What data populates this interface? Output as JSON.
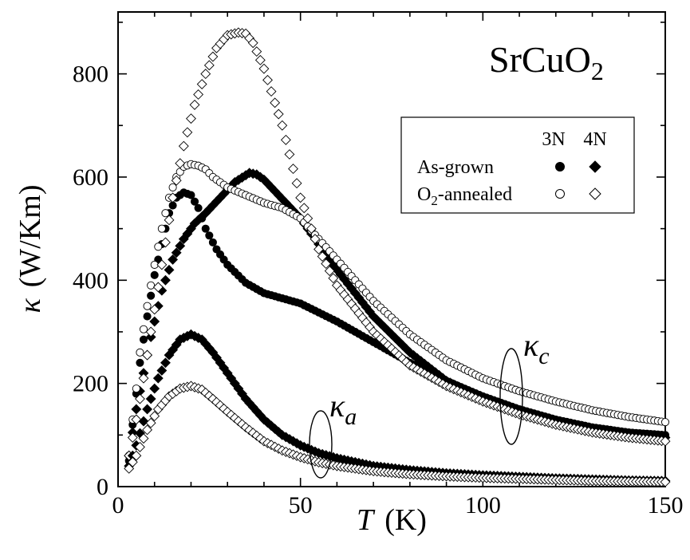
{
  "chart_data": {
    "type": "scatter",
    "title": "SrCuO",
    "title_subscript": "2",
    "xlabel_symbol": "T",
    "xlabel_unit": "(K)",
    "ylabel_symbol": "κ",
    "ylabel_unit": "(W/Km)",
    "xlim": [
      0,
      150
    ],
    "ylim": [
      0,
      920
    ],
    "xticks": [
      0,
      50,
      100,
      150
    ],
    "yticks": [
      0,
      200,
      400,
      600,
      800
    ],
    "grid": false,
    "legend": {
      "position": "upper-right",
      "column_headers": [
        "3N",
        "4N"
      ],
      "rows": [
        {
          "label": "As-grown",
          "label_main": "As-grown",
          "label_sub": "",
          "label_rest": ""
        },
        {
          "label": "O2-annealed",
          "label_main": "O",
          "label_sub": "2",
          "label_rest": "-annealed"
        }
      ]
    },
    "annotations": [
      {
        "symbol": "κ",
        "subscript": "c",
        "x": 108,
        "y": 245
      },
      {
        "symbol": "κ",
        "subscript": "a",
        "x": 56,
        "y": 115
      }
    ],
    "series": [
      {
        "name": "κc As-grown 3N",
        "marker": "circle",
        "filled": true,
        "x": [
          3,
          4,
          5,
          6,
          8,
          10,
          12,
          14,
          16,
          18,
          20,
          22,
          24,
          27,
          30,
          35,
          40,
          50,
          60,
          70,
          80,
          90,
          100,
          110,
          120,
          130,
          140,
          150
        ],
        "y": [
          50,
          120,
          180,
          240,
          330,
          410,
          470,
          530,
          560,
          570,
          565,
          540,
          500,
          460,
          430,
          395,
          375,
          355,
          320,
          280,
          240,
          205,
          175,
          150,
          130,
          115,
          105,
          100
        ]
      },
      {
        "name": "κc As-grown 4N",
        "marker": "diamond",
        "filled": true,
        "x": [
          3,
          5,
          7,
          9,
          12,
          15,
          18,
          21,
          24,
          28,
          32,
          36,
          38,
          40,
          44,
          50,
          55,
          60,
          70,
          80,
          90,
          100,
          110,
          120,
          130,
          140,
          150
        ],
        "y": [
          60,
          150,
          220,
          290,
          380,
          440,
          480,
          510,
          530,
          560,
          590,
          608,
          605,
          595,
          565,
          520,
          470,
          420,
          330,
          260,
          205,
          170,
          145,
          125,
          112,
          103,
          95
        ]
      },
      {
        "name": "κc O2-annealed 3N",
        "marker": "circle",
        "filled": false,
        "x": [
          3,
          4,
          5,
          6,
          8,
          10,
          12,
          14,
          16,
          18,
          20,
          22,
          24,
          26,
          30,
          35,
          40,
          45,
          50,
          60,
          70,
          80,
          90,
          100,
          110,
          120,
          130,
          140,
          150
        ],
        "y": [
          60,
          130,
          190,
          260,
          350,
          430,
          500,
          560,
          600,
          620,
          625,
          622,
          615,
          600,
          580,
          565,
          550,
          540,
          520,
          440,
          360,
          295,
          245,
          210,
          185,
          165,
          148,
          135,
          125
        ]
      },
      {
        "name": "κc O2-annealed 4N",
        "marker": "diamond",
        "filled": false,
        "x": [
          3,
          5,
          7,
          9,
          12,
          15,
          18,
          21,
          24,
          27,
          30,
          33,
          35,
          37,
          40,
          45,
          50,
          55,
          60,
          70,
          80,
          90,
          100,
          110,
          120,
          130,
          140,
          150
        ],
        "y": [
          60,
          130,
          210,
          300,
          430,
          560,
          660,
          740,
          800,
          850,
          875,
          880,
          878,
          860,
          810,
          700,
          560,
          460,
          390,
          300,
          235,
          195,
          165,
          140,
          120,
          105,
          95,
          88
        ]
      },
      {
        "name": "κa As-grown 4N",
        "marker": "diamond",
        "filled": true,
        "x": [
          3,
          5,
          8,
          11,
          14,
          17,
          20,
          23,
          26,
          30,
          35,
          40,
          45,
          50,
          55,
          60,
          70,
          80,
          90,
          100,
          110,
          120,
          130,
          140,
          150
        ],
        "y": [
          40,
          80,
          150,
          210,
          255,
          285,
          295,
          285,
          260,
          220,
          170,
          130,
          100,
          80,
          65,
          55,
          40,
          32,
          26,
          22,
          19,
          16,
          14,
          12,
          11
        ]
      },
      {
        "name": "κa O2-annealed 4N",
        "marker": "diamond",
        "filled": false,
        "x": [
          3,
          5,
          8,
          11,
          14,
          17,
          20,
          23,
          26,
          30,
          35,
          40,
          45,
          50,
          55,
          60,
          70,
          80,
          90,
          100,
          110,
          120,
          130,
          140,
          150
        ],
        "y": [
          35,
          60,
          110,
          150,
          175,
          190,
          195,
          188,
          170,
          145,
          115,
          88,
          70,
          57,
          47,
          40,
          30,
          24,
          20,
          17,
          15,
          13,
          11,
          10,
          9
        ]
      }
    ]
  }
}
